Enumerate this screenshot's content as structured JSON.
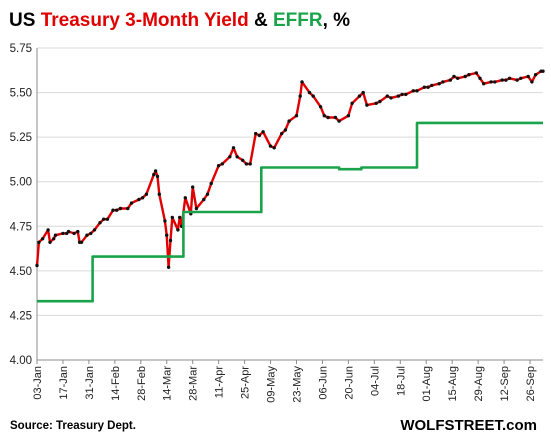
{
  "chart_data": {
    "type": "line",
    "title_parts": [
      {
        "text": "US ",
        "color": "#000000"
      },
      {
        "text": "Treasury 3-Month Yield",
        "color": "#e00000"
      },
      {
        "text": " & ",
        "color": "#000000"
      },
      {
        "text": "EFFR",
        "color": "#1aa34a"
      },
      {
        "text": ", %",
        "color": "#000000"
      }
    ],
    "source": "Source: Treasury Dept.",
    "brand": "WOLFSTREET.com",
    "ylim": [
      4.0,
      5.75
    ],
    "yticks": [
      "4.00",
      "4.25",
      "4.50",
      "4.75",
      "5.00",
      "5.25",
      "5.50",
      "5.75"
    ],
    "xlim": [
      "2023-01-03",
      "2023-10-03"
    ],
    "xticks": [
      {
        "date": "2023-01-03",
        "label": "03-Jan"
      },
      {
        "date": "2023-01-17",
        "label": "17-Jan"
      },
      {
        "date": "2023-01-31",
        "label": "31-Jan"
      },
      {
        "date": "2023-02-14",
        "label": "14-Feb"
      },
      {
        "date": "2023-02-28",
        "label": "28-Feb"
      },
      {
        "date": "2023-03-14",
        "label": "14-Mar"
      },
      {
        "date": "2023-03-28",
        "label": "28-Mar"
      },
      {
        "date": "2023-04-11",
        "label": "11-Apr"
      },
      {
        "date": "2023-04-25",
        "label": "25-Apr"
      },
      {
        "date": "2023-05-09",
        "label": "09-May"
      },
      {
        "date": "2023-05-23",
        "label": "23-May"
      },
      {
        "date": "2023-06-06",
        "label": "06-Jun"
      },
      {
        "date": "2023-06-20",
        "label": "20-Jun"
      },
      {
        "date": "2023-07-04",
        "label": "04-Jul"
      },
      {
        "date": "2023-07-18",
        "label": "18-Jul"
      },
      {
        "date": "2023-08-01",
        "label": "01-Aug"
      },
      {
        "date": "2023-08-15",
        "label": "15-Aug"
      },
      {
        "date": "2023-08-29",
        "label": "29-Aug"
      },
      {
        "date": "2023-09-12",
        "label": "12-Sep"
      },
      {
        "date": "2023-09-26",
        "label": "26-Sep"
      }
    ],
    "grid": true,
    "series": [
      {
        "name": "Treasury 3-Month Yield",
        "color": "#e00000",
        "marker_color": "#111111",
        "points": [
          [
            "2023-01-03",
            4.53
          ],
          [
            "2023-01-04",
            4.66
          ],
          [
            "2023-01-06",
            4.68
          ],
          [
            "2023-01-09",
            4.73
          ],
          [
            "2023-01-10",
            4.66
          ],
          [
            "2023-01-12",
            4.68
          ],
          [
            "2023-01-13",
            4.7
          ],
          [
            "2023-01-17",
            4.71
          ],
          [
            "2023-01-19",
            4.71
          ],
          [
            "2023-01-20",
            4.72
          ],
          [
            "2023-01-23",
            4.71
          ],
          [
            "2023-01-25",
            4.72
          ],
          [
            "2023-01-26",
            4.66
          ],
          [
            "2023-01-27",
            4.66
          ],
          [
            "2023-01-30",
            4.7
          ],
          [
            "2023-02-01",
            4.71
          ],
          [
            "2023-02-03",
            4.73
          ],
          [
            "2023-02-06",
            4.77
          ],
          [
            "2023-02-08",
            4.79
          ],
          [
            "2023-02-10",
            4.79
          ],
          [
            "2023-02-13",
            4.84
          ],
          [
            "2023-02-15",
            4.84
          ],
          [
            "2023-02-17",
            4.85
          ],
          [
            "2023-02-21",
            4.85
          ],
          [
            "2023-02-23",
            4.88
          ],
          [
            "2023-02-27",
            4.9
          ],
          [
            "2023-03-01",
            4.91
          ],
          [
            "2023-03-03",
            4.93
          ],
          [
            "2023-03-07",
            5.04
          ],
          [
            "2023-03-08",
            5.06
          ],
          [
            "2023-03-09",
            5.03
          ],
          [
            "2023-03-10",
            4.93
          ],
          [
            "2023-03-13",
            4.78
          ],
          [
            "2023-03-14",
            4.7
          ],
          [
            "2023-03-15",
            4.52
          ],
          [
            "2023-03-16",
            4.67
          ],
          [
            "2023-03-17",
            4.8
          ],
          [
            "2023-03-20",
            4.73
          ],
          [
            "2023-03-21",
            4.8
          ],
          [
            "2023-03-22",
            4.75
          ],
          [
            "2023-03-24",
            4.91
          ],
          [
            "2023-03-27",
            4.82
          ],
          [
            "2023-03-28",
            4.97
          ],
          [
            "2023-03-30",
            4.85
          ],
          [
            "2023-04-03",
            4.9
          ],
          [
            "2023-04-05",
            4.93
          ],
          [
            "2023-04-07",
            4.99
          ],
          [
            "2023-04-11",
            5.09
          ],
          [
            "2023-04-13",
            5.1
          ],
          [
            "2023-04-17",
            5.14
          ],
          [
            "2023-04-19",
            5.19
          ],
          [
            "2023-04-21",
            5.14
          ],
          [
            "2023-04-24",
            5.12
          ],
          [
            "2023-04-26",
            5.1
          ],
          [
            "2023-04-28",
            5.1
          ],
          [
            "2023-05-01",
            5.27
          ],
          [
            "2023-05-03",
            5.26
          ],
          [
            "2023-05-05",
            5.28
          ],
          [
            "2023-05-09",
            5.2
          ],
          [
            "2023-05-11",
            5.19
          ],
          [
            "2023-05-15",
            5.27
          ],
          [
            "2023-05-17",
            5.29
          ],
          [
            "2023-05-19",
            5.34
          ],
          [
            "2023-05-23",
            5.37
          ],
          [
            "2023-05-25",
            5.48
          ],
          [
            "2023-05-26",
            5.56
          ],
          [
            "2023-05-30",
            5.5
          ],
          [
            "2023-06-01",
            5.48
          ],
          [
            "2023-06-05",
            5.42
          ],
          [
            "2023-06-07",
            5.37
          ],
          [
            "2023-06-09",
            5.36
          ],
          [
            "2023-06-13",
            5.36
          ],
          [
            "2023-06-15",
            5.34
          ],
          [
            "2023-06-20",
            5.37
          ],
          [
            "2023-06-22",
            5.44
          ],
          [
            "2023-06-26",
            5.48
          ],
          [
            "2023-06-28",
            5.5
          ],
          [
            "2023-06-30",
            5.43
          ],
          [
            "2023-07-05",
            5.44
          ],
          [
            "2023-07-07",
            5.45
          ],
          [
            "2023-07-11",
            5.48
          ],
          [
            "2023-07-13",
            5.47
          ],
          [
            "2023-07-17",
            5.48
          ],
          [
            "2023-07-19",
            5.49
          ],
          [
            "2023-07-21",
            5.49
          ],
          [
            "2023-07-25",
            5.51
          ],
          [
            "2023-07-27",
            5.51
          ],
          [
            "2023-07-31",
            5.53
          ],
          [
            "2023-08-02",
            5.53
          ],
          [
            "2023-08-04",
            5.54
          ],
          [
            "2023-08-08",
            5.55
          ],
          [
            "2023-08-10",
            5.56
          ],
          [
            "2023-08-14",
            5.57
          ],
          [
            "2023-08-16",
            5.59
          ],
          [
            "2023-08-18",
            5.58
          ],
          [
            "2023-08-22",
            5.59
          ],
          [
            "2023-08-24",
            5.6
          ],
          [
            "2023-08-28",
            5.61
          ],
          [
            "2023-08-30",
            5.58
          ],
          [
            "2023-09-01",
            5.55
          ],
          [
            "2023-09-05",
            5.56
          ],
          [
            "2023-09-07",
            5.56
          ],
          [
            "2023-09-11",
            5.57
          ],
          [
            "2023-09-13",
            5.57
          ],
          [
            "2023-09-15",
            5.58
          ],
          [
            "2023-09-19",
            5.57
          ],
          [
            "2023-09-21",
            5.58
          ],
          [
            "2023-09-25",
            5.59
          ],
          [
            "2023-09-27",
            5.56
          ],
          [
            "2023-09-29",
            5.6
          ],
          [
            "2023-10-02",
            5.62
          ],
          [
            "2023-10-03",
            5.62
          ]
        ]
      },
      {
        "name": "EFFR",
        "color": "#1aa34a",
        "step": true,
        "points": [
          [
            "2023-01-03",
            4.33
          ],
          [
            "2023-02-02",
            4.33
          ],
          [
            "2023-02-02",
            4.58
          ],
          [
            "2023-03-23",
            4.58
          ],
          [
            "2023-03-23",
            4.83
          ],
          [
            "2023-05-04",
            4.83
          ],
          [
            "2023-05-04",
            5.08
          ],
          [
            "2023-06-15",
            5.08
          ],
          [
            "2023-06-15",
            5.07
          ],
          [
            "2023-06-27",
            5.07
          ],
          [
            "2023-06-27",
            5.08
          ],
          [
            "2023-07-27",
            5.08
          ],
          [
            "2023-07-27",
            5.33
          ],
          [
            "2023-10-03",
            5.33
          ]
        ]
      }
    ]
  }
}
